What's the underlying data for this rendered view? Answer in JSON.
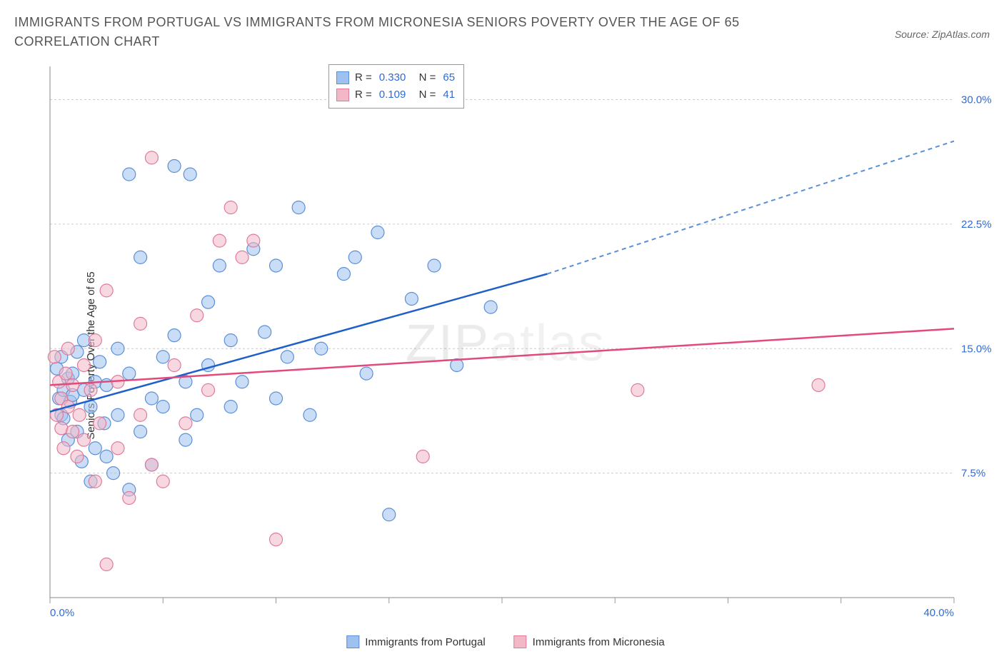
{
  "title": "IMMIGRANTS FROM PORTUGAL VS IMMIGRANTS FROM MICRONESIA SENIORS POVERTY OVER THE AGE OF 65 CORRELATION CHART",
  "source": "Source: ZipAtlas.com",
  "ylabel": "Seniors Poverty Over the Age of 65",
  "watermark_a": "ZIP",
  "watermark_b": "atlas",
  "chart": {
    "type": "scatter",
    "xlim": [
      0,
      40
    ],
    "ylim": [
      0,
      32
    ],
    "x_ticks": [
      0,
      5,
      10,
      15,
      20,
      25,
      30,
      35,
      40
    ],
    "x_tick_labels": {
      "0": "0.0%",
      "40": "40.0%"
    },
    "y_ticks": [
      7.5,
      15.0,
      22.5,
      30.0
    ],
    "y_tick_labels": [
      "7.5%",
      "15.0%",
      "22.5%",
      "30.0%"
    ],
    "grid_color": "#d0d0d0",
    "axis_color": "#888888",
    "background_color": "#ffffff",
    "label_color": "#2e6bd6",
    "marker_radius": 9,
    "marker_opacity": 0.55,
    "marker_stroke_width": 1.2,
    "series": [
      {
        "name": "Immigrants from Portugal",
        "fill": "#9ec1f0",
        "stroke": "#5a8fd8",
        "r_value": "0.330",
        "n_value": "65",
        "regression": {
          "x1": 0,
          "y1": 11.2,
          "x2": 22,
          "y2": 19.5,
          "x2_ext": 40,
          "y2_ext": 27.5,
          "solid_color": "#1f5fc9",
          "dash_color": "#5a8fd8"
        },
        "points": [
          [
            0.3,
            13.8
          ],
          [
            0.4,
            12.0
          ],
          [
            0.5,
            14.5
          ],
          [
            0.5,
            11.0
          ],
          [
            0.6,
            12.5
          ],
          [
            0.6,
            10.8
          ],
          [
            0.8,
            9.5
          ],
          [
            0.8,
            13.2
          ],
          [
            0.9,
            11.8
          ],
          [
            1.0,
            12.2
          ],
          [
            1.0,
            13.5
          ],
          [
            1.2,
            10.0
          ],
          [
            1.2,
            14.8
          ],
          [
            1.4,
            8.2
          ],
          [
            1.5,
            12.5
          ],
          [
            1.5,
            15.5
          ],
          [
            1.8,
            7.0
          ],
          [
            1.8,
            11.5
          ],
          [
            2.0,
            9.0
          ],
          [
            2.0,
            13.0
          ],
          [
            2.2,
            14.2
          ],
          [
            2.4,
            10.5
          ],
          [
            2.5,
            8.5
          ],
          [
            2.5,
            12.8
          ],
          [
            2.8,
            7.5
          ],
          [
            3.0,
            11.0
          ],
          [
            3.0,
            15.0
          ],
          [
            3.5,
            13.5
          ],
          [
            3.5,
            6.5
          ],
          [
            3.5,
            25.5
          ],
          [
            4.0,
            20.5
          ],
          [
            4.0,
            10.0
          ],
          [
            4.5,
            12.0
          ],
          [
            4.5,
            8.0
          ],
          [
            5.0,
            14.5
          ],
          [
            5.0,
            11.5
          ],
          [
            5.5,
            15.8
          ],
          [
            5.5,
            26.0
          ],
          [
            6.0,
            9.5
          ],
          [
            6.0,
            13.0
          ],
          [
            6.2,
            25.5
          ],
          [
            6.5,
            11.0
          ],
          [
            7.0,
            17.8
          ],
          [
            7.0,
            14.0
          ],
          [
            7.5,
            20.0
          ],
          [
            8.0,
            11.5
          ],
          [
            8.0,
            15.5
          ],
          [
            8.5,
            13.0
          ],
          [
            9.0,
            21.0
          ],
          [
            9.5,
            16.0
          ],
          [
            10.0,
            12.0
          ],
          [
            10.0,
            20.0
          ],
          [
            10.5,
            14.5
          ],
          [
            11.0,
            23.5
          ],
          [
            11.5,
            11.0
          ],
          [
            12.0,
            15.0
          ],
          [
            13.0,
            19.5
          ],
          [
            13.5,
            20.5
          ],
          [
            14.0,
            13.5
          ],
          [
            14.5,
            22.0
          ],
          [
            15.0,
            5.0
          ],
          [
            16.0,
            18.0
          ],
          [
            17.0,
            20.0
          ],
          [
            18.0,
            14.0
          ],
          [
            19.5,
            17.5
          ]
        ]
      },
      {
        "name": "Immigrants from Micronesia",
        "fill": "#f2b8c6",
        "stroke": "#e07a9a",
        "r_value": "0.109",
        "n_value": "41",
        "regression": {
          "x1": 0,
          "y1": 12.8,
          "x2": 40,
          "y2": 16.2,
          "solid_color": "#e24a7a"
        },
        "points": [
          [
            0.2,
            14.5
          ],
          [
            0.3,
            11.0
          ],
          [
            0.4,
            13.0
          ],
          [
            0.5,
            10.2
          ],
          [
            0.5,
            12.0
          ],
          [
            0.6,
            9.0
          ],
          [
            0.7,
            13.5
          ],
          [
            0.8,
            11.5
          ],
          [
            0.8,
            15.0
          ],
          [
            1.0,
            10.0
          ],
          [
            1.0,
            12.8
          ],
          [
            1.2,
            8.5
          ],
          [
            1.3,
            11.0
          ],
          [
            1.5,
            14.0
          ],
          [
            1.5,
            9.5
          ],
          [
            1.8,
            12.5
          ],
          [
            2.0,
            7.0
          ],
          [
            2.0,
            15.5
          ],
          [
            2.2,
            10.5
          ],
          [
            2.5,
            18.5
          ],
          [
            2.5,
            2.0
          ],
          [
            3.0,
            13.0
          ],
          [
            3.0,
            9.0
          ],
          [
            3.5,
            6.0
          ],
          [
            4.0,
            11.0
          ],
          [
            4.0,
            16.5
          ],
          [
            4.5,
            26.5
          ],
          [
            4.5,
            8.0
          ],
          [
            5.0,
            7.0
          ],
          [
            5.5,
            14.0
          ],
          [
            6.0,
            10.5
          ],
          [
            6.5,
            17.0
          ],
          [
            7.0,
            12.5
          ],
          [
            7.5,
            21.5
          ],
          [
            8.0,
            23.5
          ],
          [
            8.5,
            20.5
          ],
          [
            9.0,
            21.5
          ],
          [
            10.0,
            3.5
          ],
          [
            16.5,
            8.5
          ],
          [
            26.0,
            12.5
          ],
          [
            34.0,
            12.8
          ]
        ]
      }
    ]
  },
  "legend_bottom": [
    {
      "label": "Immigrants from Portugal",
      "fill": "#9ec1f0",
      "stroke": "#5a8fd8"
    },
    {
      "label": "Immigrants from Micronesia",
      "fill": "#f2b8c6",
      "stroke": "#e07a9a"
    }
  ]
}
